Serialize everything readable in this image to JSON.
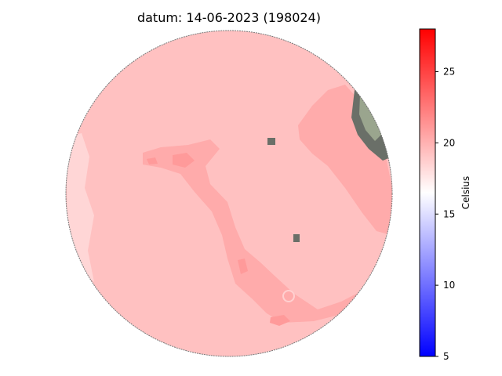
{
  "chart_data": {
    "type": "heatmap",
    "title": "datum: 14-06-2023 (198024)",
    "colorbar": {
      "label": "Celsius",
      "vmin": 5,
      "vmax": 28,
      "ticks": [
        5,
        10,
        15,
        20,
        25
      ],
      "tick_labels": [
        "5",
        "10",
        "15",
        "20",
        "25"
      ],
      "colormap": "bwr",
      "position": "right"
    },
    "map": {
      "shape": "circle",
      "dominant_value": 20.5,
      "warm_zone_value": 21.8,
      "hotspot_value": 23.5,
      "cool_edge_value": 19.0,
      "no_data_color": "#6a6f68",
      "shore_color": "#9aa58e"
    },
    "colors": {
      "dominant": "#ffc1c1",
      "warm_zone": "#ffabab",
      "hotspot": "#ff8e8e",
      "cool_edge": "#ffd6d6",
      "outline": "#555555"
    }
  }
}
